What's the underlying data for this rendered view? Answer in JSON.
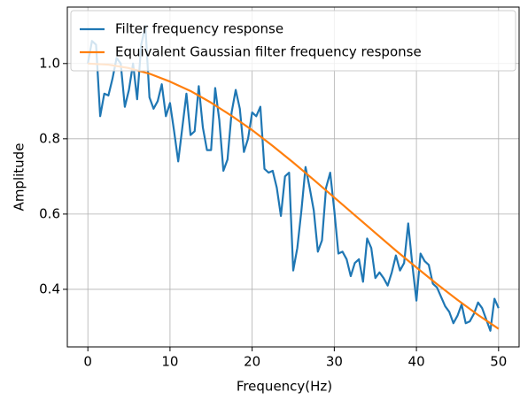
{
  "chart_data": {
    "type": "line",
    "xlabel": "Frequency(Hz)",
    "ylabel": "Amplitude",
    "xlim": [
      -2.5,
      52.5
    ],
    "ylim": [
      0.247,
      1.15
    ],
    "xticks": [
      0,
      10,
      20,
      30,
      40,
      50
    ],
    "yticks": [
      0.4,
      0.6,
      0.8,
      {
        "value": 1,
        "label": "1.0"
      }
    ],
    "grid": true,
    "legend": "upper left",
    "series": [
      {
        "name": "Filter frequency response",
        "color": "#1f77b4",
        "x": [
          0,
          0.5,
          1,
          1.5,
          2,
          2.5,
          3,
          3.5,
          4,
          4.5,
          5,
          5.5,
          6,
          6.5,
          7,
          7.5,
          8,
          8.5,
          9,
          9.5,
          10,
          10.5,
          11,
          11.5,
          12,
          12.5,
          13,
          13.5,
          14,
          14.5,
          15,
          15.5,
          16,
          16.5,
          17,
          17.5,
          18,
          18.5,
          19,
          19.5,
          20,
          20.5,
          21,
          21.5,
          22,
          22.5,
          23,
          23.5,
          24,
          24.5,
          25,
          25.5,
          26,
          26.5,
          27,
          27.5,
          28,
          28.5,
          29,
          29.5,
          30,
          30.5,
          31,
          31.5,
          32,
          32.5,
          33,
          33.5,
          34,
          34.5,
          35,
          35.5,
          36,
          36.5,
          37,
          37.5,
          38,
          38.5,
          39,
          39.5,
          40,
          40.5,
          41,
          41.5,
          42,
          42.5,
          43,
          43.5,
          44,
          44.5,
          45,
          45.5,
          46,
          46.5,
          47,
          47.5,
          48,
          48.5,
          49,
          49.5,
          50
        ],
        "values": [
          1.0,
          1.06,
          1.05,
          0.86,
          0.92,
          0.915,
          0.96,
          1.015,
          1.0,
          0.885,
          0.93,
          1.0,
          0.905,
          1.05,
          1.1,
          0.91,
          0.88,
          0.9,
          0.945,
          0.86,
          0.895,
          0.82,
          0.74,
          0.83,
          0.92,
          0.81,
          0.82,
          0.94,
          0.83,
          0.77,
          0.77,
          0.935,
          0.85,
          0.715,
          0.745,
          0.87,
          0.93,
          0.88,
          0.765,
          0.8,
          0.87,
          0.86,
          0.885,
          0.72,
          0.71,
          0.715,
          0.67,
          0.595,
          0.7,
          0.71,
          0.45,
          0.51,
          0.61,
          0.725,
          0.67,
          0.61,
          0.5,
          0.53,
          0.67,
          0.71,
          0.61,
          0.495,
          0.5,
          0.48,
          0.435,
          0.47,
          0.48,
          0.42,
          0.535,
          0.51,
          0.43,
          0.445,
          0.43,
          0.41,
          0.445,
          0.49,
          0.45,
          0.47,
          0.575,
          0.465,
          0.37,
          0.495,
          0.475,
          0.465,
          0.415,
          0.405,
          0.38,
          0.355,
          0.34,
          0.31,
          0.33,
          0.36,
          0.31,
          0.315,
          0.335,
          0.365,
          0.35,
          0.32,
          0.29,
          0.375,
          0.35
        ]
      },
      {
        "name": "Equivalent Gaussian filter frequency response",
        "color": "#ff7f0e",
        "x": [
          0,
          2.5,
          5,
          7.5,
          10,
          12.5,
          15,
          17.5,
          20,
          22.5,
          25,
          27.5,
          30,
          32.5,
          35,
          37.5,
          40,
          42.5,
          45,
          47.5,
          50
        ],
        "values": [
          1.0,
          0.997,
          0.988,
          0.973,
          0.952,
          0.927,
          0.896,
          0.861,
          0.823,
          0.781,
          0.737,
          0.691,
          0.644,
          0.597,
          0.55,
          0.503,
          0.458,
          0.414,
          0.372,
          0.332,
          0.295
        ]
      }
    ]
  }
}
